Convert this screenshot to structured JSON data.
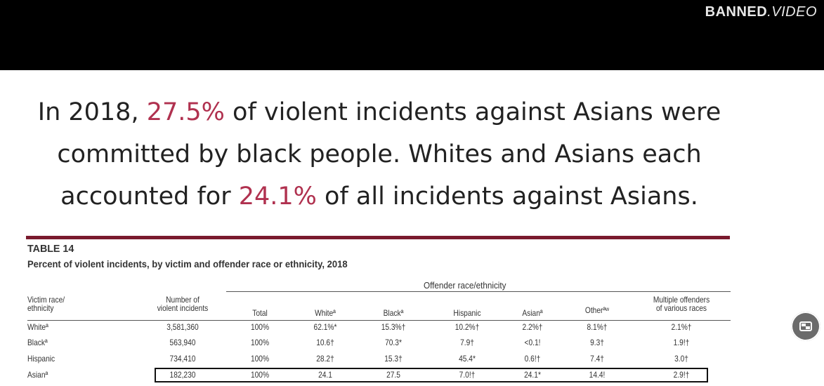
{
  "logo": {
    "part1": "BANNED",
    "part2": ".VIDEO"
  },
  "headline": {
    "line1_a": "In 2018, ",
    "line1_pct": "27.5%",
    "line1_b": " of violent incidents against Asians were",
    "line2": "committed by black people. Whites and Asians each",
    "line3_a": "accounted for ",
    "line3_pct": "24.1%",
    "line3_b": " of all incidents against Asians."
  },
  "table": {
    "title": "TABLE 14",
    "subtitle": "Percent of violent incidents, by victim and offender race or ethnicity, 2018",
    "group_header": "Offender race/ethnicity",
    "headers": {
      "victim_line1": "Victim race/",
      "victim_line2": "ethnicity",
      "number_line1": "Number of",
      "number_line2": "violent incidents",
      "total": "Total",
      "white": "Whiteª",
      "black": "Blackª",
      "hispanic": "Hispanic",
      "asian": "Asianª",
      "other": "Otherªʷ",
      "multiple_line1": "Multiple offenders",
      "multiple_line2": "of various races"
    },
    "rows": [
      {
        "victim": "Whiteª",
        "number": "3,581,360",
        "total": "100%",
        "white": "62.1%*",
        "black": "15.3%†",
        "hispanic": "10.2%†",
        "asian": "2.2%†",
        "other": "8.1%†",
        "multiple": "2.1%†"
      },
      {
        "victim": "Blackª",
        "number": "563,940",
        "total": "100%",
        "white": "10.6†",
        "black": "70.3*",
        "hispanic": "7.9†",
        "asian": "<0.1!",
        "other": "9.3†",
        "multiple": "1.9!†"
      },
      {
        "victim": "Hispanic",
        "number": "734,410",
        "total": "100%",
        "white": "28.2†",
        "black": "15.3†",
        "hispanic": "45.4*",
        "asian": "0.6!†",
        "other": "7.4†",
        "multiple": "3.0†"
      },
      {
        "victim": "Asianª",
        "number": "182,230",
        "total": "100%",
        "white": "24.1",
        "black": "27.5",
        "hispanic": "7.0!†",
        "asian": "24.1*",
        "other": "14.4!",
        "multiple": "2.9!†"
      }
    ]
  },
  "colors": {
    "highlight": "#b0314f",
    "rule": "#7a1a2e",
    "topbar": "#000000"
  },
  "fab_icon": "picture-in-picture-icon"
}
